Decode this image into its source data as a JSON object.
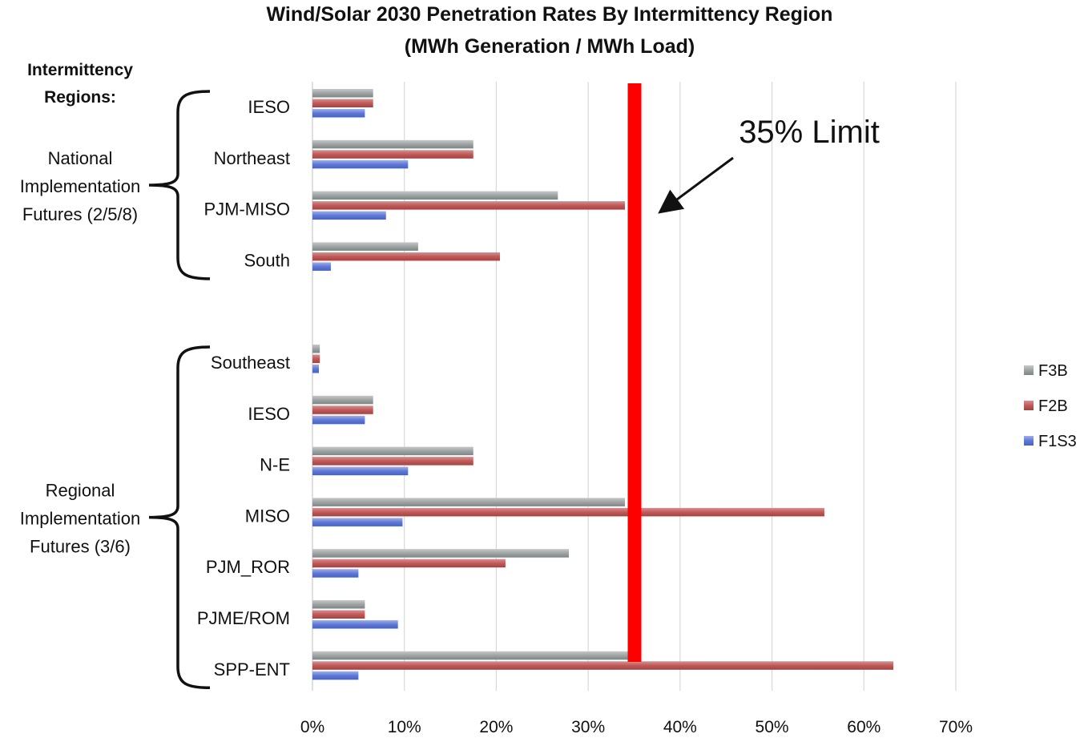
{
  "chart_data": {
    "type": "bar",
    "orientation": "horizontal",
    "title": "Wind/Solar 2030 Penetration Rates By Intermittency Region",
    "subtitle": "(MWh Generation / MWh Load)",
    "xlim": [
      0,
      70
    ],
    "x_ticks": [
      "0%",
      "10%",
      "20%",
      "30%",
      "40%",
      "50%",
      "60%",
      "70%"
    ],
    "grid": true,
    "legend_position": "right",
    "row_header": [
      "Intermittency",
      "Regions:"
    ],
    "groups": [
      {
        "label": [
          "National",
          "Implementation",
          "Futures (2/5/8)"
        ],
        "categories": [
          "IESO",
          "Northeast",
          "PJM-MISO",
          "South"
        ],
        "series": [
          {
            "name": "F3B",
            "values": [
              6.6,
              17.5,
              26.7,
              11.5
            ]
          },
          {
            "name": "F2B",
            "values": [
              6.6,
              17.5,
              34.0,
              20.4
            ]
          },
          {
            "name": "F1S3",
            "values": [
              5.7,
              10.4,
              8.0,
              2.0
            ]
          }
        ]
      },
      {
        "label": [
          "Regional",
          "Implementation",
          "Futures (3/6)"
        ],
        "categories": [
          "Southeast",
          "IESO",
          "N-E",
          "MISO",
          "PJM_ROR",
          "PJME/ROM",
          "SPP-ENT"
        ],
        "series": [
          {
            "name": "F3B",
            "values": [
              0.8,
              6.6,
              17.5,
              34.0,
              27.9,
              5.7,
              35.0
            ]
          },
          {
            "name": "F2B",
            "values": [
              0.8,
              6.6,
              17.5,
              55.7,
              21.0,
              5.7,
              63.2
            ]
          },
          {
            "name": "F1S3",
            "values": [
              0.7,
              5.7,
              10.4,
              9.8,
              5.0,
              9.3,
              5.0
            ]
          }
        ]
      }
    ],
    "series_colors": {
      "F3B": "#9ea3a3",
      "F2B": "#c05a5a",
      "F1S3": "#5f78d6"
    },
    "reference_line": {
      "value": 35,
      "label": "35% Limit",
      "color": "#ff0000"
    }
  }
}
